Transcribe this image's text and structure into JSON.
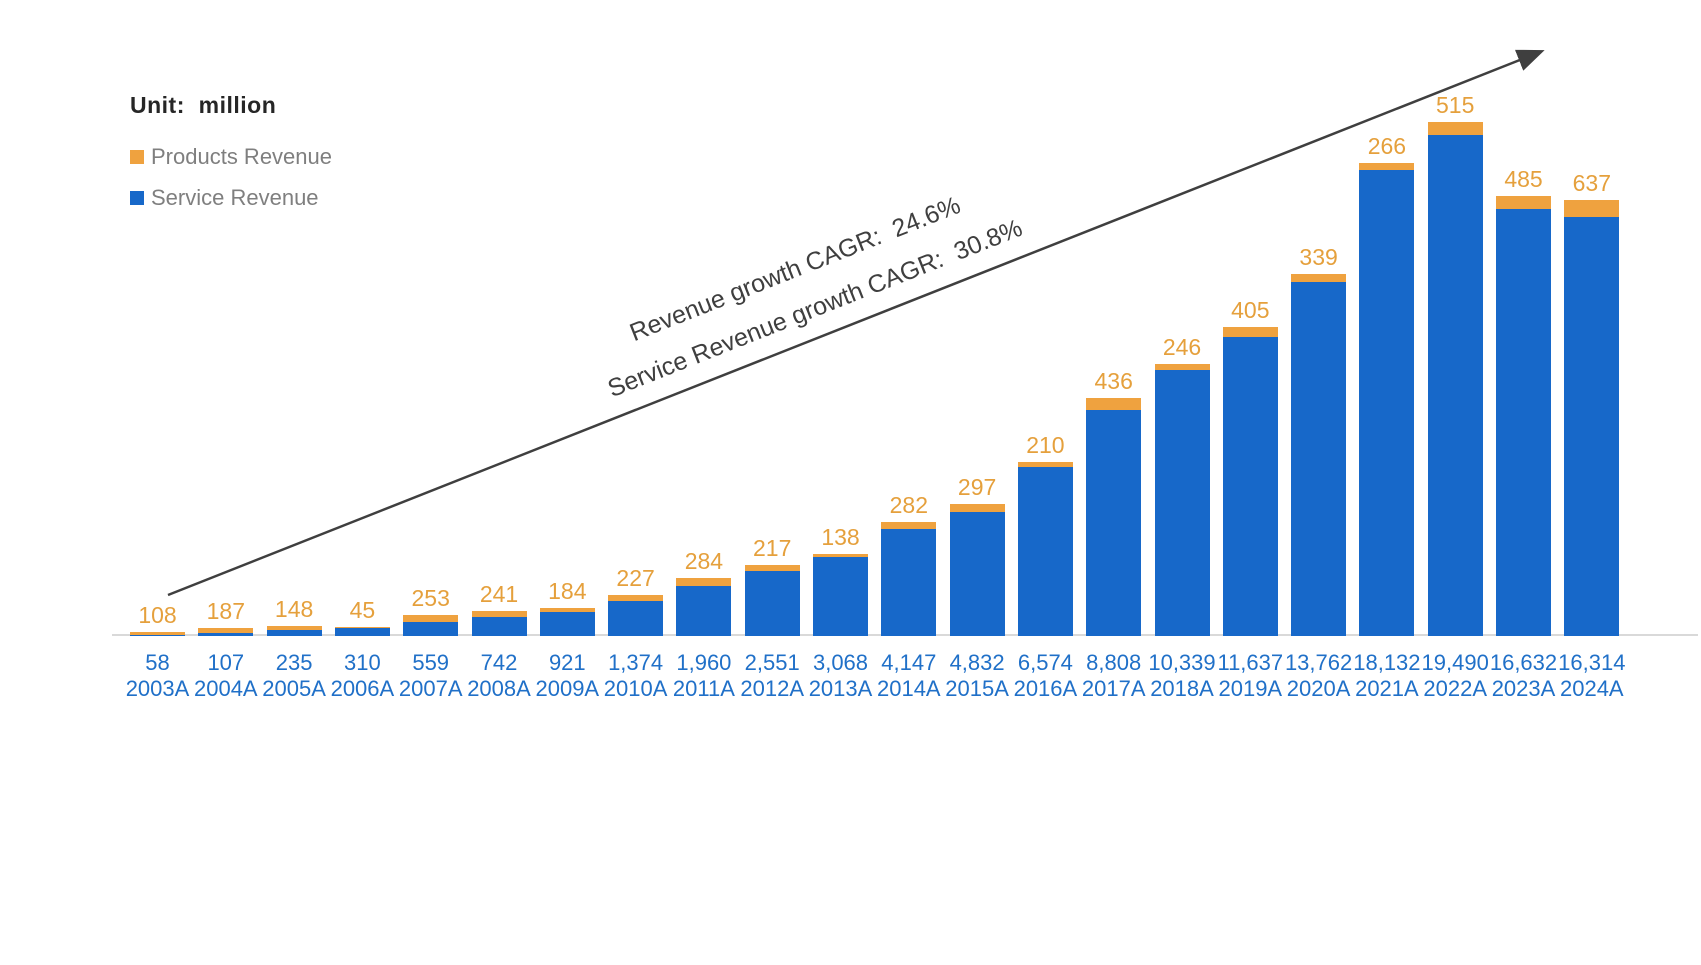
{
  "header": {
    "unit_label": "Unit:  million"
  },
  "legend": {
    "items": [
      {
        "label": "Products Revenue",
        "color": "#EFA23F"
      },
      {
        "label": "Service Revenue",
        "color": "#1768C9"
      }
    ]
  },
  "annotations": {
    "revenue_cagr_label": "Revenue growth CAGR:  24.6%",
    "service_revenue_cagr_label": "Service Revenue growth CAGR:  30.8%",
    "revenue_cagr_value": "24.6%",
    "service_revenue_cagr_value": "30.8%"
  },
  "chart_data": {
    "type": "bar",
    "stacked": true,
    "unit": "million",
    "grid": false,
    "legend_position": "top-left",
    "categories": [
      "2003A",
      "2004A",
      "2005A",
      "2006A",
      "2007A",
      "2008A",
      "2009A",
      "2010A",
      "2011A",
      "2012A",
      "2013A",
      "2014A",
      "2015A",
      "2016A",
      "2017A",
      "2018A",
      "2019A",
      "2020A",
      "2021A",
      "2022A",
      "2023A",
      "2024A"
    ],
    "series": [
      {
        "name": "Service Revenue",
        "color": "#1768C9",
        "values": [
          58,
          107,
          235,
          310,
          559,
          742,
          921,
          1374,
          1960,
          2551,
          3068,
          4147,
          4832,
          6574,
          8808,
          10339,
          11637,
          13762,
          18132,
          19490,
          16632,
          16314
        ]
      },
      {
        "name": "Products Revenue",
        "color": "#EFA23F",
        "values": [
          108,
          187,
          148,
          45,
          253,
          241,
          184,
          227,
          284,
          217,
          138,
          282,
          297,
          210,
          436,
          246,
          405,
          339,
          266,
          515,
          485,
          637
        ]
      }
    ]
  }
}
